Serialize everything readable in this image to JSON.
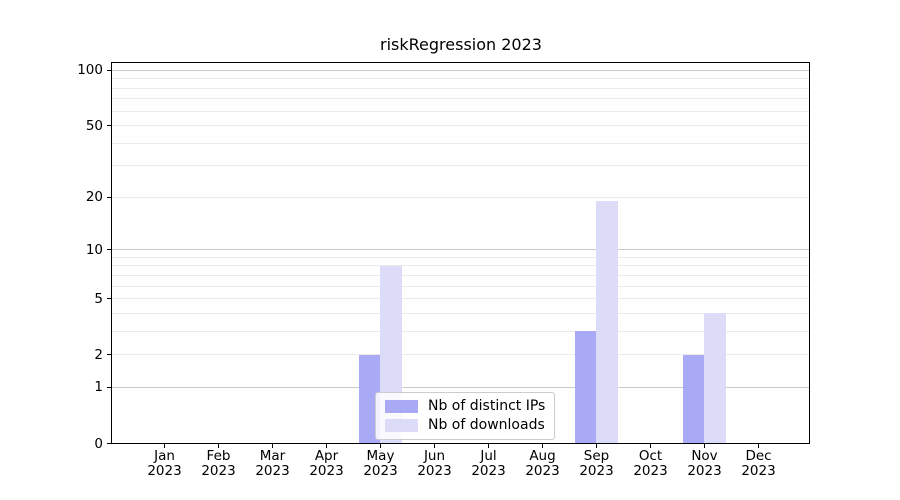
{
  "chart_data": {
    "type": "bar",
    "title": "riskRegression 2023",
    "months": [
      "Jan",
      "Feb",
      "Mar",
      "Apr",
      "May",
      "Jun",
      "Jul",
      "Aug",
      "Sep",
      "Oct",
      "Nov",
      "Dec"
    ],
    "year_label": "2023",
    "series": [
      {
        "name": "Nb of distinct IPs",
        "color": "#a9a9f6",
        "values": [
          0,
          0,
          0,
          0,
          2,
          0,
          0,
          0,
          3,
          0,
          2,
          0
        ]
      },
      {
        "name": "Nb of downloads",
        "color": "#dcdcf8",
        "values": [
          0,
          0,
          0,
          0,
          8,
          0,
          0,
          0,
          19,
          0,
          4,
          0
        ]
      }
    ],
    "y_axis": {
      "scale": "log1p",
      "tick_values": [
        0,
        1,
        2,
        5,
        10,
        20,
        50,
        100
      ],
      "range": [
        0,
        108
      ],
      "grid": true,
      "grid_values": [
        1,
        2,
        3,
        4,
        5,
        6,
        7,
        8,
        9,
        10,
        20,
        30,
        40,
        50,
        60,
        70,
        80,
        90,
        100
      ],
      "major_grid_values": [
        1,
        10,
        100
      ]
    },
    "legend": {
      "position": "lower-center"
    }
  },
  "colors": {
    "background": "#ffffff",
    "bar_distinct_ips": "#a9a9f6",
    "bar_downloads": "#dcdcf8",
    "grid_minor": "#ebebeb",
    "grid_major": "#c9c9c9",
    "axis_spine": "#000000",
    "text": "#000000",
    "legend_border": "#cccccc"
  }
}
